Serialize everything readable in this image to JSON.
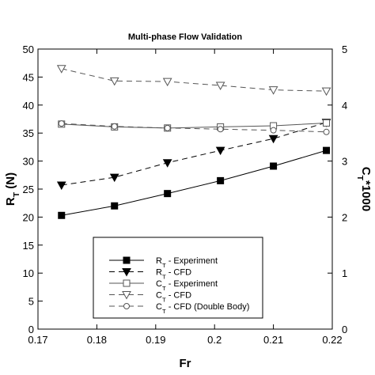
{
  "chart_data": {
    "type": "line",
    "title": "Multi-phase Flow Validation",
    "x_label": "Fr",
    "y_label": "RT (N)",
    "y2_label": "CT*1000",
    "xlim": [
      0.17,
      0.22
    ],
    "xticks": [
      0.17,
      0.18,
      0.19,
      0.2,
      0.21,
      0.22
    ],
    "ylim": [
      0,
      50
    ],
    "yticks": [
      0,
      5,
      10,
      15,
      20,
      25,
      30,
      35,
      40,
      45,
      50
    ],
    "y2lim": [
      0,
      5
    ],
    "y2ticks": [
      0,
      1,
      2,
      3,
      4,
      5
    ],
    "x": [
      0.174,
      0.183,
      0.192,
      0.201,
      0.21,
      0.219
    ],
    "series": [
      {
        "name": "RT - Experiment",
        "color": "#000000",
        "marker": "square-filled",
        "dashed": false,
        "values": [
          20.3,
          22.0,
          24.2,
          26.5,
          29.1,
          31.9
        ]
      },
      {
        "name": "RT - CFD",
        "color": "#000000",
        "marker": "triangle-filled",
        "dashed": true,
        "values": [
          25.7,
          27.1,
          29.7,
          31.9,
          34.0,
          36.9
        ]
      },
      {
        "name": "CT - Experiment",
        "color": "#555555",
        "marker": "square-open",
        "dashed": false,
        "axis": "y2",
        "values": [
          3.66,
          3.61,
          3.59,
          3.61,
          3.63,
          3.68
        ]
      },
      {
        "name": "CT - CFD",
        "color": "#555555",
        "marker": "triangle-open",
        "dashed": true,
        "axis": "y2",
        "values": [
          4.65,
          4.43,
          4.42,
          4.35,
          4.27,
          4.25
        ]
      },
      {
        "name": "CT - CFD (Double Body)",
        "color": "#555555",
        "marker": "circle-open",
        "dashed": true,
        "axis": "y2",
        "values": [
          3.67,
          3.62,
          3.59,
          3.57,
          3.55,
          3.52
        ]
      }
    ]
  }
}
